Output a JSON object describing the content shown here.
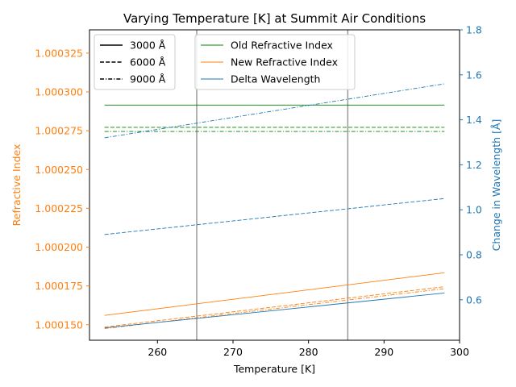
{
  "chart_data": {
    "type": "line",
    "title": "Varying Temperature [K] at Summit Air Conditions",
    "xlabel": "Temperature [K]",
    "ylabel_left": "Refractive Index",
    "ylabel_right": "Change in Wavelength [Å]",
    "x_range": [
      251,
      300
    ],
    "x_ticks": [
      260,
      270,
      280,
      290,
      300
    ],
    "y_left_range": [
      1.00014,
      1.00034
    ],
    "y_left_ticks": [
      1.00015,
      1.000175,
      1.0002,
      1.000225,
      1.00025,
      1.000275,
      1.0003,
      1.000325
    ],
    "y_left_tick_labels": [
      "1.000150",
      "1.000175",
      "1.000200",
      "1.000225",
      "1.000250",
      "1.000275",
      "1.000300",
      "1.000325"
    ],
    "y_right_range": [
      0.42,
      1.8
    ],
    "y_right_ticks": [
      0.6,
      0.8,
      1.0,
      1.2,
      1.4,
      1.6,
      1.8
    ],
    "y_right_tick_labels": [
      "0.6",
      "0.8",
      "1.0",
      "1.2",
      "1.4",
      "1.6",
      "1.8"
    ],
    "vertical_lines": [
      265.2,
      285.2
    ],
    "colors": {
      "old_index": "#008000",
      "new_index": "#ff7f0e",
      "delta_wavelength": "#1f77b4",
      "left_axis": "#ff7f0e",
      "right_axis": "#1f77b4",
      "vlines": "#999999"
    },
    "style_legend": [
      {
        "label": "3000 Å",
        "dash": "solid"
      },
      {
        "label": "6000 Å",
        "dash": "dashed"
      },
      {
        "label": "9000 Å",
        "dash": "dashdot"
      }
    ],
    "series_legend": [
      {
        "label": "Old Refractive Index",
        "color_key": "old_index"
      },
      {
        "label": "New Refractive Index",
        "color_key": "new_index"
      },
      {
        "label": "Delta Wavelength",
        "color_key": "delta_wavelength"
      }
    ],
    "series": [
      {
        "name": "Old Refractive Index",
        "wavelength": "3000 Å",
        "axis": "left",
        "dash": "solid",
        "color_key": "old_index",
        "x": [
          253,
          298
        ],
        "y": [
          1.0002915,
          1.0002915
        ]
      },
      {
        "name": "Old Refractive Index",
        "wavelength": "6000 Å",
        "axis": "left",
        "dash": "dashed",
        "color_key": "old_index",
        "x": [
          253,
          298
        ],
        "y": [
          1.0002772,
          1.0002772
        ]
      },
      {
        "name": "Old Refractive Index",
        "wavelength": "9000 Å",
        "axis": "left",
        "dash": "dashdot",
        "color_key": "old_index",
        "x": [
          253,
          298
        ],
        "y": [
          1.0002745,
          1.0002745
        ]
      },
      {
        "name": "New Refractive Index",
        "wavelength": "3000 Å",
        "axis": "left",
        "dash": "solid",
        "color_key": "new_index",
        "x": [
          253,
          298
        ],
        "y": [
          1.000156,
          1.0001835
        ]
      },
      {
        "name": "New Refractive Index",
        "wavelength": "6000 Å",
        "axis": "left",
        "dash": "dashed",
        "color_key": "new_index",
        "x": [
          253,
          298
        ],
        "y": [
          1.0001485,
          1.0001745
        ]
      },
      {
        "name": "New Refractive Index",
        "wavelength": "9000 Å",
        "axis": "left",
        "dash": "dashdot",
        "color_key": "new_index",
        "x": [
          253,
          298
        ],
        "y": [
          1.0001475,
          1.0001732
        ]
      },
      {
        "name": "Delta Wavelength",
        "wavelength": "3000 Å",
        "axis": "right",
        "dash": "solid",
        "color_key": "delta_wavelength",
        "x": [
          253,
          298
        ],
        "y": [
          0.475,
          0.63
        ]
      },
      {
        "name": "Delta Wavelength",
        "wavelength": "6000 Å",
        "axis": "right",
        "dash": "dashed",
        "color_key": "delta_wavelength",
        "x": [
          253,
          298
        ],
        "y": [
          0.89,
          1.05
        ]
      },
      {
        "name": "Delta Wavelength",
        "wavelength": "9000 Å",
        "axis": "right",
        "dash": "dashdot",
        "color_key": "delta_wavelength",
        "x": [
          253,
          298
        ],
        "y": [
          1.32,
          1.56
        ]
      }
    ]
  }
}
